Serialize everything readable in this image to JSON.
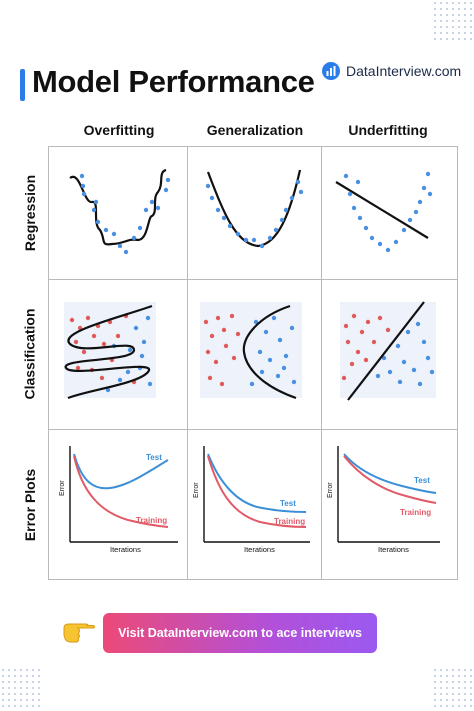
{
  "header": {
    "title": "Model Performance",
    "brand": "DataInterview.com"
  },
  "columns": [
    "Overfitting",
    "Generalization",
    "Underfitting"
  ],
  "rows": [
    "Regression",
    "Classification",
    "Error Plots"
  ],
  "error_plots": {
    "test_label": "Test",
    "training_label": "Training",
    "y_axis_label": "Error",
    "x_axis_label": "Iterations"
  },
  "cta": {
    "label": "Visit DataInterview.com to ace interviews"
  },
  "colors": {
    "accent": "#2b7de9",
    "blue_points": "#4a90e2",
    "red_points": "#e05a5a",
    "test_curve": "#3c8fd6",
    "training_curve": "#e05a68",
    "cta_gradient_start": "#ec4a77",
    "cta_gradient_end": "#9b59f0"
  },
  "icons": [
    "bar-chart-icon",
    "pointing-hand-icon"
  ]
}
